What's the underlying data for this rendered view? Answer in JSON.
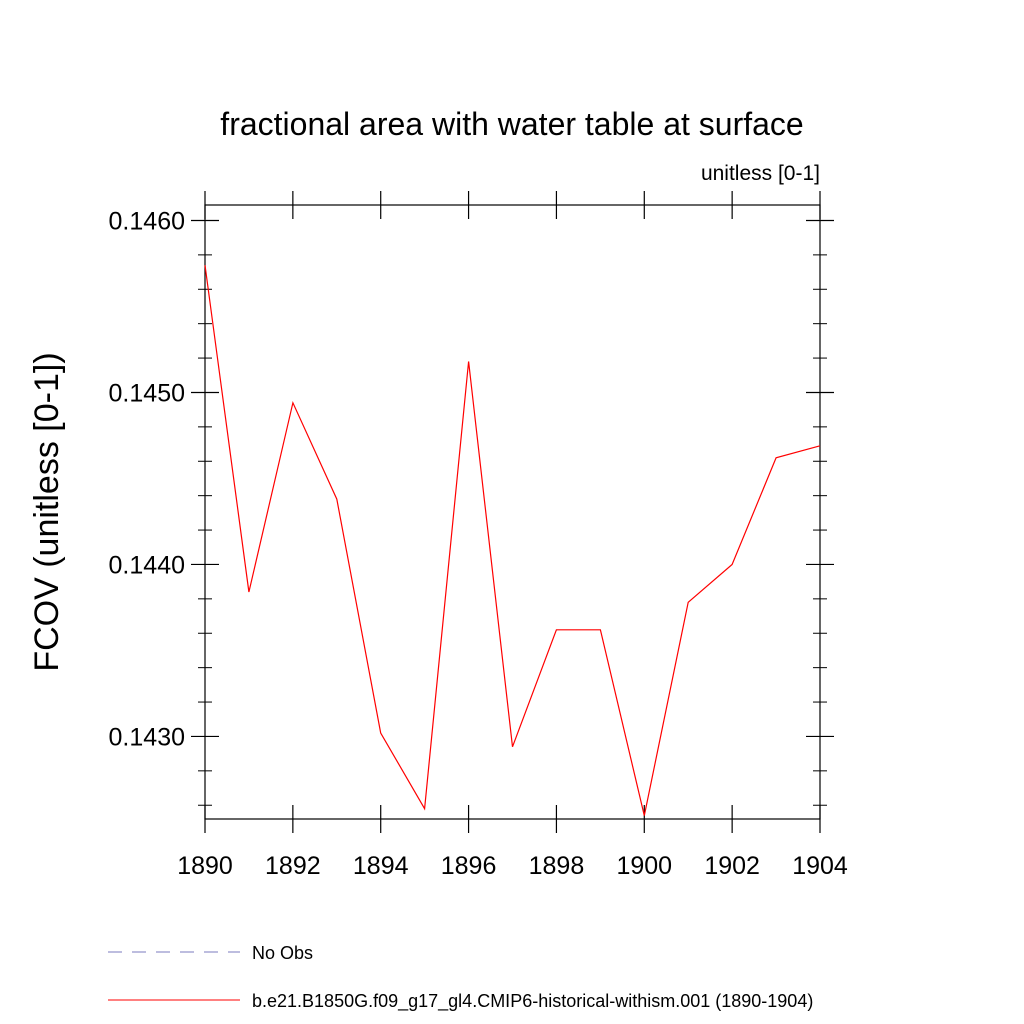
{
  "chart_data": {
    "type": "line",
    "title": "fractional area with water table at surface",
    "units": "unitless [0-1]",
    "ylabel": "FCOV  (unitless [0-1])",
    "xlabel": "",
    "xlim": [
      1890,
      1904
    ],
    "ylim": [
      0.14252,
      0.14609
    ],
    "x_ticks": [
      1890,
      1892,
      1894,
      1896,
      1898,
      1900,
      1902,
      1904
    ],
    "x_tick_labels": [
      "1890",
      "1892",
      "1894",
      "1896",
      "1898",
      "1900",
      "1902",
      "1904"
    ],
    "y_ticks": [
      0.143,
      0.144,
      0.145,
      0.146
    ],
    "y_tick_labels": [
      "0.1430",
      "0.1440",
      "0.1450",
      "0.1460"
    ],
    "y_minor_step": 0.0002,
    "grid": false,
    "legend_position": "bottom-left",
    "series": [
      {
        "name": "b.e21.B1850G.f09_g17_gl4.CMIP6-historical-withism.001 (1890-1904)",
        "color": "#ff0000",
        "dash": "solid",
        "x": [
          1890,
          1891,
          1892,
          1893,
          1894,
          1895,
          1896,
          1897,
          1898,
          1899,
          1900,
          1901,
          1902,
          1903,
          1904
        ],
        "y": [
          0.14574,
          0.14384,
          0.14494,
          0.14438,
          0.14302,
          0.14258,
          0.14518,
          0.14294,
          0.14362,
          0.14362,
          0.14254,
          0.14378,
          0.144,
          0.14462,
          0.14469
        ]
      }
    ],
    "legend_entries": [
      {
        "label": "No Obs",
        "color": "#7b7bbf",
        "dash": "dashed"
      },
      {
        "label": "b.e21.B1850G.f09_g17_gl4.CMIP6-historical-withism.001 (1890-1904)",
        "color": "#ff0000",
        "dash": "solid"
      }
    ]
  }
}
